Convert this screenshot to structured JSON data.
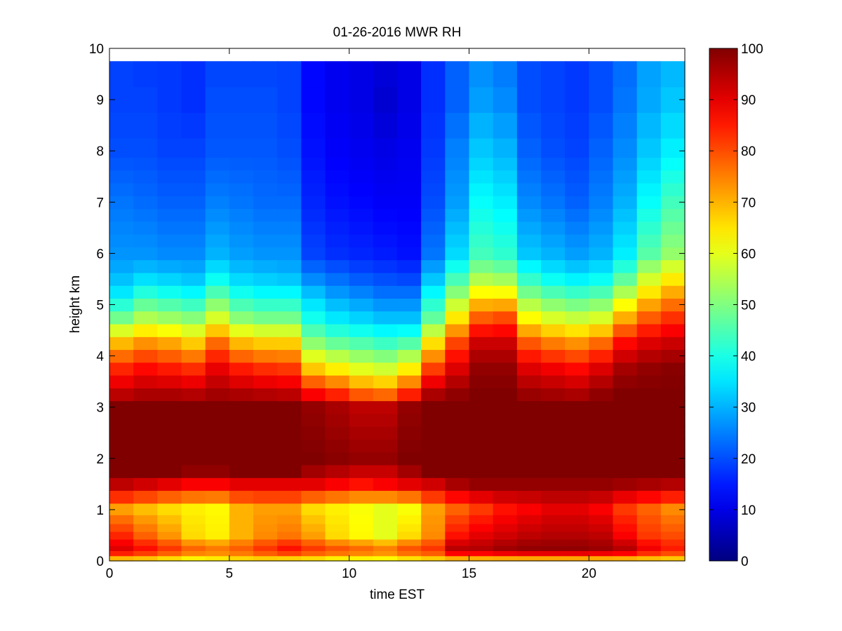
{
  "chart_data": {
    "type": "heatmap",
    "title": "01-26-2016 MWR RH",
    "xlabel": "time EST",
    "ylabel": "height km",
    "xlim": [
      0,
      24
    ],
    "ylim": [
      0,
      10
    ],
    "xticks": [
      0,
      5,
      10,
      15,
      20
    ],
    "yticks": [
      0,
      1,
      2,
      3,
      4,
      5,
      6,
      7,
      8,
      9,
      10
    ],
    "colorbar": {
      "colormap": "jet",
      "clim": [
        0,
        100
      ],
      "ticks": [
        0,
        10,
        20,
        30,
        40,
        50,
        60,
        70,
        80,
        90,
        100
      ]
    },
    "time_step_hours": 1,
    "time_start_hours": 0,
    "data_top_km": 9.75,
    "height_km": [
      0.05,
      0.15,
      0.25,
      0.35,
      0.5,
      0.65,
      0.8,
      1.0,
      1.25,
      1.5,
      1.75,
      2.0,
      2.25,
      2.5,
      2.75,
      3.0,
      3.25,
      3.5,
      3.75,
      4.0,
      4.25,
      4.5,
      4.75,
      5.0,
      5.25,
      5.5,
      5.75,
      6.0,
      6.25,
      6.5,
      6.75,
      7.0,
      7.25,
      7.5,
      7.75,
      8.0,
      8.5,
      9.0,
      9.5
    ],
    "height_anchor_km": [
      0,
      0.2,
      0.5,
      1.0,
      1.5,
      1.7,
      2.0,
      3.0,
      3.3,
      3.8,
      4.3,
      4.7,
      5.2,
      5.6,
      6.0,
      7.0,
      8.0,
      9.0,
      9.75
    ],
    "rh_anchor_profiles_percent": [
      [
        62,
        92,
        84,
        72,
        94,
        100,
        100,
        100,
        93,
        83,
        68,
        50,
        36,
        30,
        27,
        24,
        20,
        19,
        19
      ],
      [
        62,
        88,
        78,
        69,
        92,
        100,
        100,
        100,
        95,
        86,
        72,
        56,
        42,
        32,
        27,
        23,
        20,
        19,
        18
      ],
      [
        60,
        84,
        73,
        66,
        90,
        100,
        100,
        100,
        95,
        84,
        70,
        54,
        40,
        31,
        26,
        22,
        19,
        18,
        18
      ],
      [
        58,
        80,
        66,
        64,
        88,
        98,
        100,
        100,
        94,
        82,
        66,
        52,
        38,
        30,
        26,
        22,
        19,
        17,
        17
      ],
      [
        60,
        78,
        64,
        63,
        88,
        98,
        100,
        100,
        96,
        89,
        76,
        60,
        46,
        36,
        30,
        25,
        21,
        20,
        19
      ],
      [
        62,
        80,
        70,
        70,
        90,
        100,
        100,
        100,
        95,
        84,
        68,
        52,
        40,
        32,
        28,
        24,
        21,
        20,
        19
      ],
      [
        62,
        84,
        74,
        72,
        90,
        100,
        100,
        100,
        94,
        82,
        66,
        50,
        38,
        31,
        27,
        23,
        21,
        20,
        19
      ],
      [
        60,
        88,
        76,
        72,
        90,
        100,
        100,
        100,
        93,
        81,
        66,
        50,
        38,
        30,
        27,
        23,
        20,
        19,
        19
      ],
      [
        60,
        84,
        72,
        66,
        90,
        96,
        100,
        98,
        86,
        66,
        50,
        40,
        32,
        24,
        19,
        16,
        14,
        13,
        13
      ],
      [
        58,
        82,
        66,
        64,
        88,
        94,
        99,
        96,
        82,
        62,
        46,
        36,
        28,
        22,
        17,
        14,
        12,
        11,
        11
      ],
      [
        58,
        80,
        63,
        62,
        86,
        92,
        98,
        94,
        76,
        58,
        44,
        34,
        26,
        20,
        16,
        13,
        11,
        10,
        10
      ],
      [
        58,
        78,
        60,
        60,
        88,
        92,
        98,
        94,
        74,
        56,
        42,
        32,
        24,
        19,
        15,
        12,
        10,
        8,
        9
      ],
      [
        60,
        82,
        66,
        62,
        90,
        96,
        100,
        98,
        82,
        62,
        44,
        32,
        24,
        18,
        14,
        12,
        11,
        10,
        10
      ],
      [
        62,
        84,
        74,
        72,
        92,
        100,
        100,
        100,
        95,
        80,
        64,
        48,
        38,
        30,
        24,
        20,
        18,
        17,
        17
      ],
      [
        62,
        96,
        86,
        78,
        96,
        100,
        100,
        100,
        98,
        90,
        80,
        66,
        52,
        42,
        34,
        28,
        25,
        22,
        22
      ],
      [
        62,
        96,
        90,
        82,
        98,
        100,
        100,
        100,
        100,
        98,
        92,
        80,
        64,
        52,
        44,
        38,
        32,
        28,
        26
      ],
      [
        62,
        98,
        92,
        86,
        98,
        100,
        100,
        100,
        100,
        98,
        92,
        82,
        64,
        50,
        42,
        36,
        30,
        26,
        24
      ],
      [
        62,
        99,
        94,
        88,
        98,
        100,
        100,
        100,
        97,
        90,
        78,
        64,
        50,
        40,
        32,
        26,
        22,
        20,
        20
      ],
      [
        62,
        99,
        95,
        90,
        98,
        100,
        100,
        100,
        96,
        88,
        74,
        60,
        46,
        36,
        30,
        24,
        20,
        19,
        19
      ],
      [
        62,
        99,
        95,
        90,
        98,
        100,
        100,
        100,
        95,
        86,
        72,
        58,
        44,
        34,
        28,
        22,
        19,
        18,
        18
      ],
      [
        62,
        98,
        94,
        88,
        98,
        100,
        100,
        100,
        98,
        90,
        76,
        60,
        46,
        36,
        30,
        25,
        22,
        20,
        20
      ],
      [
        62,
        96,
        88,
        82,
        97,
        100,
        100,
        100,
        100,
        96,
        86,
        72,
        56,
        44,
        36,
        30,
        26,
        24,
        23
      ],
      [
        62,
        90,
        82,
        78,
        96,
        100,
        100,
        100,
        100,
        98,
        90,
        80,
        66,
        56,
        46,
        38,
        32,
        29,
        28
      ],
      [
        62,
        86,
        80,
        74,
        95,
        100,
        100,
        100,
        100,
        99,
        92,
        84,
        72,
        62,
        52,
        44,
        36,
        32,
        30
      ]
    ]
  }
}
